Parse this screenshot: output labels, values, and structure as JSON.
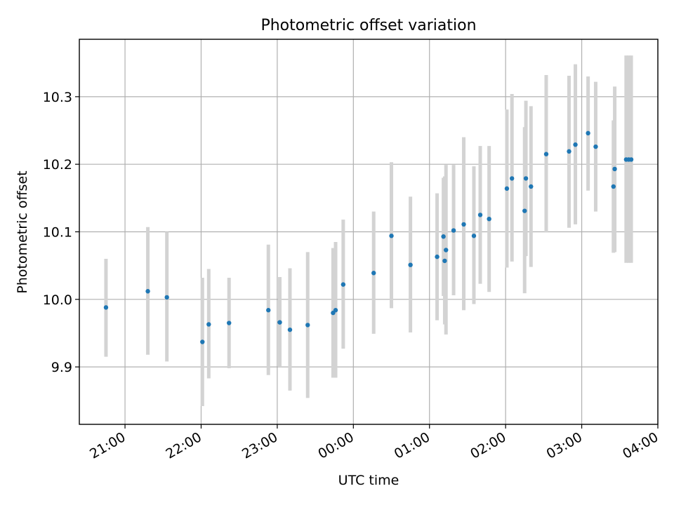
{
  "chart_data": {
    "type": "scatter",
    "title": "Photometric offset variation",
    "xlabel": "UTC time",
    "ylabel": "Photometric offset",
    "x_is_time": true,
    "xlim": [
      "20:24",
      "04:00"
    ],
    "ylim": [
      9.815,
      10.385
    ],
    "x_ticks": [
      "21:00",
      "22:00",
      "23:00",
      "00:00",
      "01:00",
      "02:00",
      "03:00",
      "04:00"
    ],
    "y_ticks": [
      "9.9",
      "10.0",
      "10.1",
      "10.2",
      "10.3"
    ],
    "y_tick_values": [
      9.9,
      10.0,
      10.1,
      10.2,
      10.3
    ],
    "grid": true,
    "colors": {
      "point": "#1f77b4",
      "errorbar": "#d3d3d3",
      "grid": "#b0b0b0"
    },
    "series": [
      {
        "points": [
          {
            "x": "20:45",
            "y": 9.988,
            "err_low": 9.915,
            "err_high": 10.06
          },
          {
            "x": "21:18",
            "y": 10.012,
            "err_low": 9.918,
            "err_high": 10.107
          },
          {
            "x": "21:33",
            "y": 10.003,
            "err_low": 9.908,
            "err_high": 10.1
          },
          {
            "x": "22:01",
            "y": 9.937,
            "err_low": 9.842,
            "err_high": 10.032
          },
          {
            "x": "22:06",
            "y": 9.963,
            "err_low": 9.883,
            "err_high": 10.045
          },
          {
            "x": "22:22",
            "y": 9.965,
            "err_low": 9.898,
            "err_high": 10.032
          },
          {
            "x": "22:53",
            "y": 9.984,
            "err_low": 9.888,
            "err_high": 10.081
          },
          {
            "x": "23:02",
            "y": 9.966,
            "err_low": 9.9,
            "err_high": 10.033
          },
          {
            "x": "23:10",
            "y": 9.955,
            "err_low": 9.865,
            "err_high": 10.046
          },
          {
            "x": "23:24",
            "y": 9.962,
            "err_low": 9.854,
            "err_high": 10.07
          },
          {
            "x": "23:44",
            "y": 9.98,
            "err_low": 9.884,
            "err_high": 10.076
          },
          {
            "x": "23:46",
            "y": 9.984,
            "err_low": 9.884,
            "err_high": 10.085
          },
          {
            "x": "23:52",
            "y": 10.022,
            "err_low": 9.927,
            "err_high": 10.118
          },
          {
            "x": "00:16",
            "y": 10.039,
            "err_low": 9.949,
            "err_high": 10.13
          },
          {
            "x": "00:30",
            "y": 10.094,
            "err_low": 9.987,
            "err_high": 10.203
          },
          {
            "x": "00:45",
            "y": 10.051,
            "err_low": 9.951,
            "err_high": 10.152
          },
          {
            "x": "01:06",
            "y": 10.063,
            "err_low": 9.969,
            "err_high": 10.157
          },
          {
            "x": "01:11",
            "y": 10.093,
            "err_low": 10.005,
            "err_high": 10.18
          },
          {
            "x": "01:12",
            "y": 10.057,
            "err_low": 9.963,
            "err_high": 10.182
          },
          {
            "x": "01:13",
            "y": 10.073,
            "err_low": 9.948,
            "err_high": 10.199
          },
          {
            "x": "01:19",
            "y": 10.102,
            "err_low": 10.006,
            "err_high": 10.199
          },
          {
            "x": "01:27",
            "y": 10.111,
            "err_low": 9.984,
            "err_high": 10.24
          },
          {
            "x": "01:35",
            "y": 10.094,
            "err_low": 9.993,
            "err_high": 10.197
          },
          {
            "x": "01:40",
            "y": 10.125,
            "err_low": 10.023,
            "err_high": 10.227
          },
          {
            "x": "01:47",
            "y": 10.119,
            "err_low": 10.011,
            "err_high": 10.227
          },
          {
            "x": "02:01",
            "y": 10.164,
            "err_low": 10.047,
            "err_high": 10.281
          },
          {
            "x": "02:05",
            "y": 10.179,
            "err_low": 10.056,
            "err_high": 10.304
          },
          {
            "x": "02:15",
            "y": 10.131,
            "err_low": 10.009,
            "err_high": 10.255
          },
          {
            "x": "02:16",
            "y": 10.179,
            "err_low": 10.064,
            "err_high": 10.294
          },
          {
            "x": "02:20",
            "y": 10.167,
            "err_low": 10.048,
            "err_high": 10.286
          },
          {
            "x": "02:32",
            "y": 10.215,
            "err_low": 10.099,
            "err_high": 10.332
          },
          {
            "x": "02:50",
            "y": 10.219,
            "err_low": 10.106,
            "err_high": 10.331
          },
          {
            "x": "02:55",
            "y": 10.229,
            "err_low": 10.111,
            "err_high": 10.348
          },
          {
            "x": "03:05",
            "y": 10.246,
            "err_low": 10.161,
            "err_high": 10.33
          },
          {
            "x": "03:11",
            "y": 10.226,
            "err_low": 10.13,
            "err_high": 10.322
          },
          {
            "x": "03:25",
            "y": 10.167,
            "err_low": 10.069,
            "err_high": 10.265
          },
          {
            "x": "03:26",
            "y": 10.193,
            "err_low": 10.07,
            "err_high": 10.315
          },
          {
            "x": "03:35",
            "y": 10.207,
            "err_low": 10.054,
            "err_high": 10.361
          },
          {
            "x": "03:37",
            "y": 10.207,
            "err_low": 10.054,
            "err_high": 10.361
          },
          {
            "x": "03:39",
            "y": 10.207,
            "err_low": 10.054,
            "err_high": 10.361
          }
        ]
      }
    ]
  }
}
